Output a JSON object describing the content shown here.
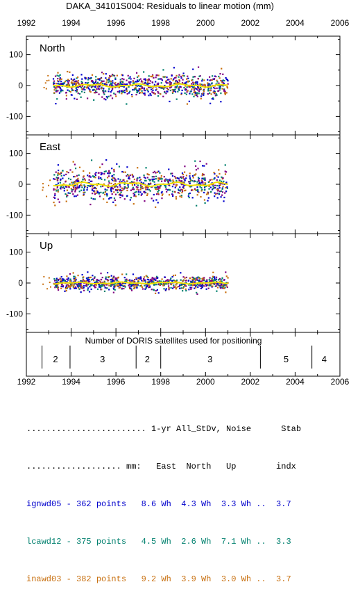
{
  "chart_data": {
    "type": "scatter",
    "title": "DAKA_34101S004: Residuals to linear motion (mm)",
    "x_ticks": [
      "1992",
      "1994",
      "1996",
      "1998",
      "2000",
      "2002",
      "2004",
      "2006"
    ],
    "xlim": [
      1992,
      2006
    ],
    "ylim": [
      -160,
      160
    ],
    "y_ticks": [
      "100",
      "0",
      "-100"
    ],
    "grid": false,
    "series_colors": {
      "ignwd05": "#0000cc",
      "lcawd12": "#00806e",
      "inawd03": "#c87010",
      "extra": "#800080",
      "mean": "#f0e000"
    },
    "panels": [
      {
        "label": "North",
        "data_start": 1993.2,
        "data_end": 2001.0,
        "spread": 30
      },
      {
        "label": "East",
        "data_start": 1993.2,
        "data_end": 2001.0,
        "spread": 40
      },
      {
        "label": "Up",
        "data_start": 1993.2,
        "data_end": 2001.0,
        "spread": 18
      }
    ],
    "satellites": {
      "title": "Number of DORIS satellites used for positioning",
      "dividers": [
        1992.7,
        1993.95,
        1996.9,
        1998.0,
        2002.45,
        2004.75
      ],
      "segments": [
        {
          "count": "2",
          "x": 1993.3
        },
        {
          "count": "3",
          "x": 1995.4
        },
        {
          "count": "2",
          "x": 1997.4
        },
        {
          "count": "3",
          "x": 2000.2
        },
        {
          "count": "5",
          "x": 2003.6
        },
        {
          "count": "4",
          "x": 2005.3
        }
      ]
    }
  },
  "stats": {
    "header1": "........................ 1-yr All_StDv, Noise      Stab",
    "header2": "................... mm:   East  North   Up        indx",
    "rows": [
      {
        "text": "ignwd05 - 362 points   8.6 Wh  4.3 Wh  3.3 Wh ..  3.7",
        "color": "#0000cc"
      },
      {
        "text": "lcawd12 - 375 points   4.5 Wh  2.6 Wh  7.1 Wh ..  3.3",
        "color": "#00806e"
      },
      {
        "text": "inawd03 - 382 points   9.2 Wh  3.9 Wh  3.0 Wh ..  3.7",
        "color": "#c87010"
      }
    ]
  }
}
